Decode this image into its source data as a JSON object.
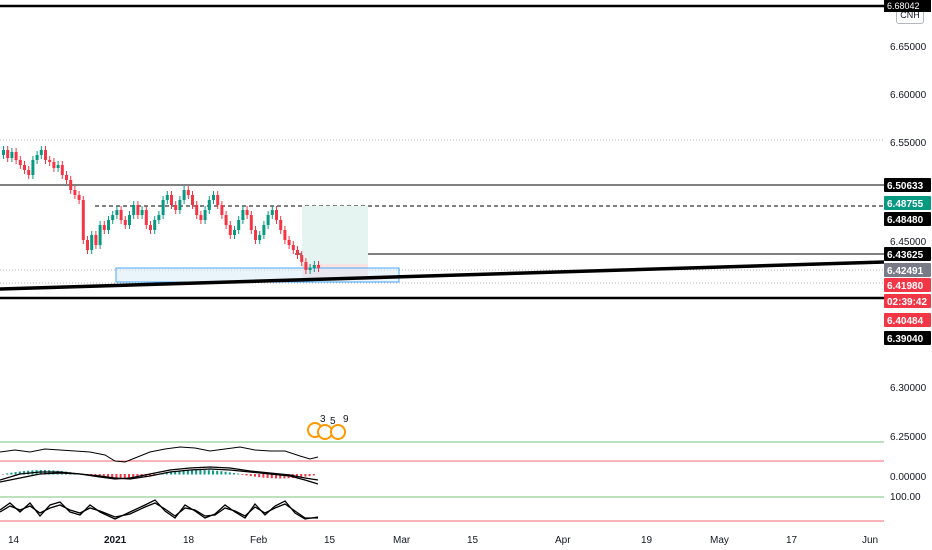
{
  "symbol_badge": "CNH",
  "price_axis": {
    "labels": [
      "6.65000",
      "6.60000",
      "6.55000",
      "6.45000",
      "6.30000",
      "6.25000"
    ],
    "top_label": "6.68042",
    "tags": [
      {
        "text": "6.50633",
        "bg": "#000000",
        "fg": "#ffffff"
      },
      {
        "text": "6.48755",
        "bg": "#089981",
        "fg": "#ffffff"
      },
      {
        "text": "6.48480",
        "bg": "#000000",
        "fg": "#ffffff"
      },
      {
        "text": "6.43625",
        "bg": "#000000",
        "fg": "#ffffff"
      },
      {
        "text": "6.42491",
        "bg": "#787b86",
        "fg": "#ffffff"
      },
      {
        "text": "6.41980",
        "bg": "#f23645",
        "fg": "#ffffff"
      },
      {
        "text": "02:39:42",
        "bg": "#f23645",
        "fg": "#ffffff"
      },
      {
        "text": "6.40484",
        "bg": "#f23645",
        "fg": "#ffffff"
      },
      {
        "text": "6.39040",
        "bg": "#000000",
        "fg": "#ffffff"
      }
    ],
    "indicator_labels": [
      "0.00000",
      "100.00"
    ]
  },
  "time_axis": [
    "14",
    "2021",
    "18",
    "Feb",
    "15",
    "Mar",
    "15",
    "Apr",
    "19",
    "May",
    "17",
    "Jun"
  ],
  "event_markers": [
    "3",
    "5",
    "9"
  ],
  "colors": {
    "up": "#089981",
    "down": "#f23645",
    "grid": "#e0e3eb",
    "line": "#000000",
    "green_line": "#4caf50",
    "red_line": "#f23645",
    "target_zone": "#e6f4f1",
    "stop_zone": "#fbe3e4",
    "box": "#d6e9f8",
    "box_border": "#2196f3"
  }
}
